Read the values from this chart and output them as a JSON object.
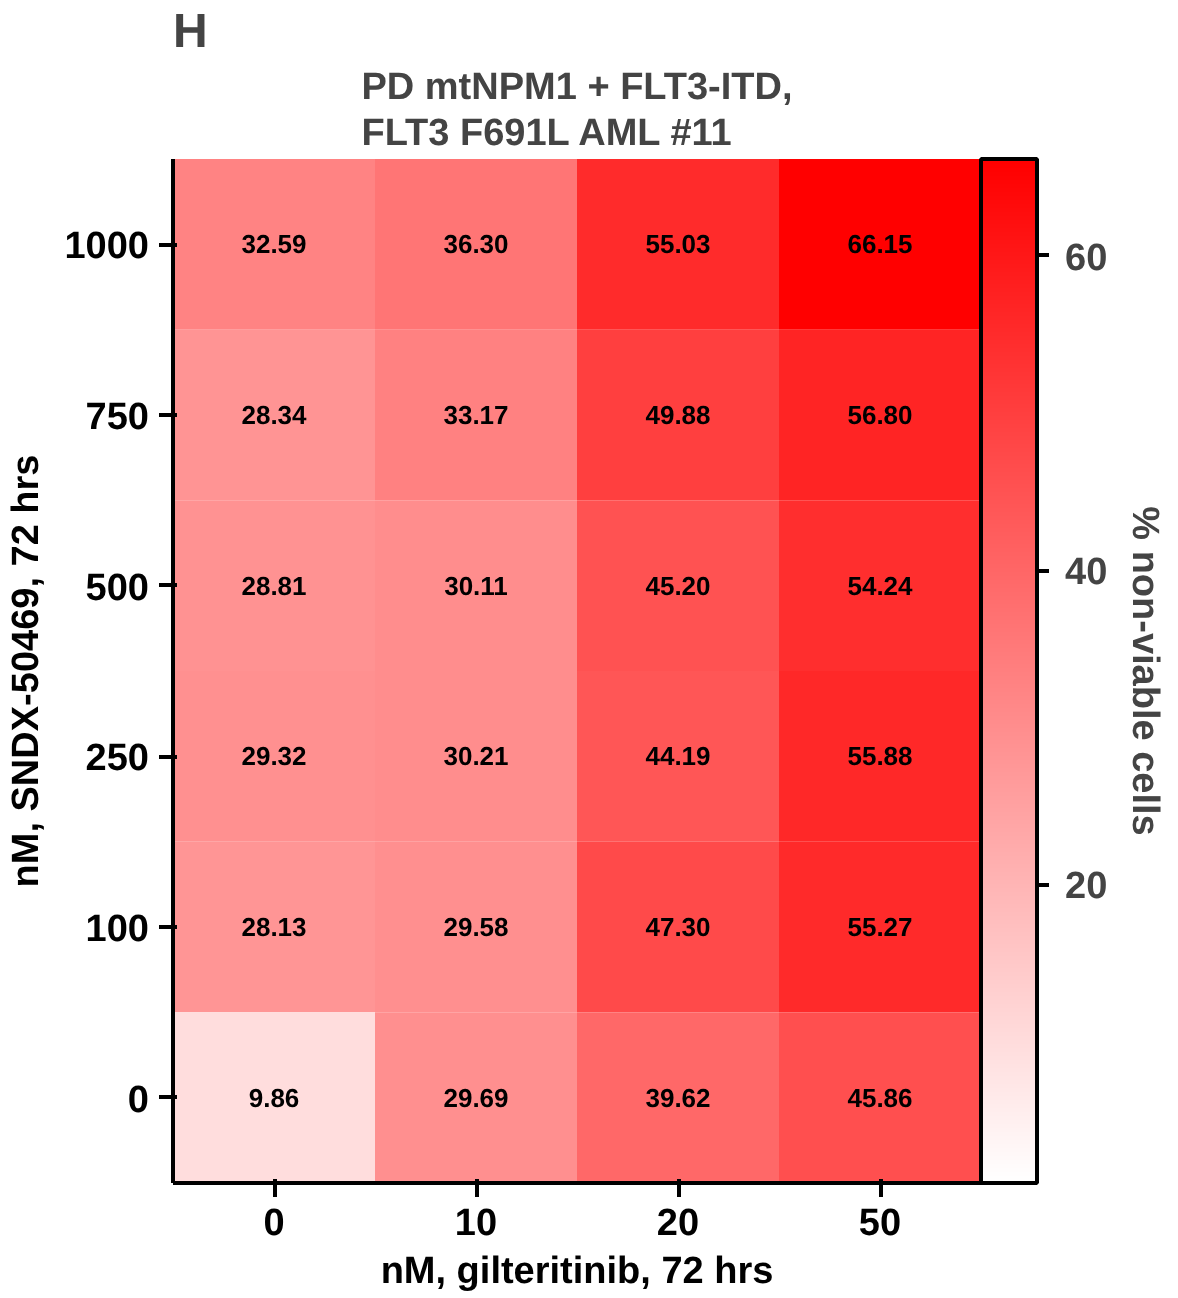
{
  "chart_data": {
    "type": "heatmap",
    "title": "PD mtNPM1 + FLT3-ITD,\nFLT3 F691L AML  #11",
    "xlabel": "nM, gilteritinib, 72 hrs",
    "ylabel": "nM, SNDX-50469, 72 hrs",
    "clabel": "% non-viable cells",
    "annotations": [
      "H"
    ],
    "categories": [
      "0",
      "10",
      "20",
      "50"
    ],
    "y_categories": [
      "1000",
      "750",
      "500",
      "250",
      "100",
      "0"
    ],
    "cells": [
      [
        32.59,
        36.3,
        55.03,
        66.15
      ],
      [
        28.34,
        33.17,
        49.88,
        56.8
      ],
      [
        28.81,
        30.11,
        45.2,
        54.24
      ],
      [
        29.32,
        30.21,
        44.19,
        55.88
      ],
      [
        28.13,
        29.58,
        47.3,
        55.27
      ],
      [
        9.86,
        29.69,
        39.62,
        45.86
      ]
    ],
    "cell_labels": [
      [
        "32.59",
        "36.30",
        "55.03",
        "66.15"
      ],
      [
        "28.34",
        "33.17",
        "49.88",
        "56.80"
      ],
      [
        "28.81",
        "30.11",
        "45.20",
        "54.24"
      ],
      [
        "29.32",
        "30.21",
        "44.19",
        "55.88"
      ],
      [
        "28.13",
        "29.58",
        "47.30",
        "55.27"
      ],
      [
        "9.86",
        "29.69",
        "39.62",
        "45.86"
      ]
    ],
    "clim": [
      1,
      66.15
    ],
    "cticks": [
      20,
      40,
      60
    ]
  }
}
